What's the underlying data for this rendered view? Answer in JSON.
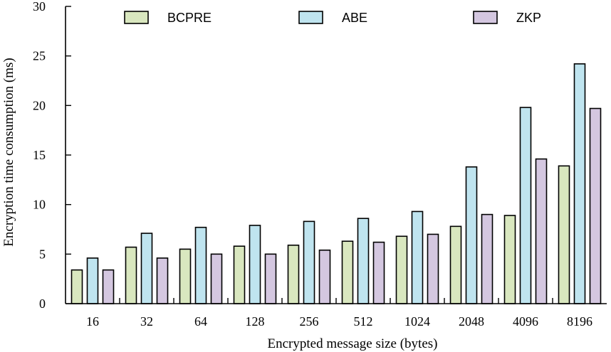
{
  "chart_data": {
    "type": "bar",
    "categories": [
      "16",
      "32",
      "64",
      "128",
      "256",
      "512",
      "1024",
      "2048",
      "4096",
      "8196"
    ],
    "series": [
      {
        "name": "BCPRE",
        "color": "#d9e7bf",
        "values": [
          3.4,
          5.7,
          5.5,
          5.8,
          5.9,
          6.3,
          6.8,
          7.8,
          8.9,
          13.9
        ]
      },
      {
        "name": "ABE",
        "color": "#bfe4ef",
        "values": [
          4.6,
          7.1,
          7.7,
          7.9,
          8.3,
          8.6,
          9.3,
          13.8,
          19.8,
          24.2
        ]
      },
      {
        "name": "ZKP",
        "color": "#d4c7e0",
        "values": [
          3.4,
          4.6,
          5.0,
          5.0,
          5.4,
          6.2,
          7.0,
          9.0,
          14.6,
          19.7
        ]
      }
    ],
    "xlabel": "Encrypted message size (bytes)",
    "ylabel": "Encryption time consumption (ms)",
    "ylim": [
      0,
      30
    ],
    "yticks": [
      "0",
      "5",
      "10",
      "15",
      "20",
      "25",
      "30"
    ],
    "grid": false,
    "legend_position": "top"
  }
}
